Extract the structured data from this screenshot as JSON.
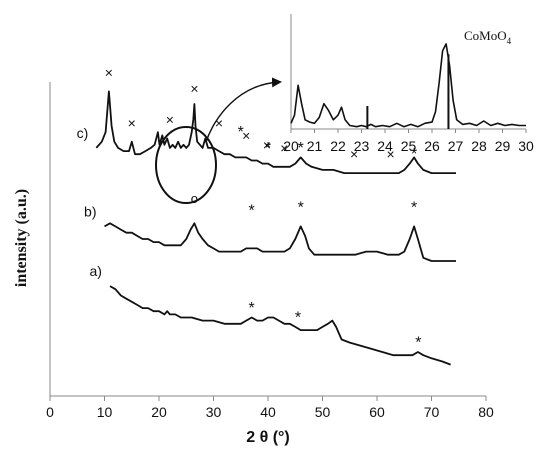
{
  "chart_data": {
    "type": "line",
    "xlabel": "2 θ (°)",
    "ylabel": "intensity (a.u.)",
    "xlim": [
      0,
      80
    ],
    "xticks": [
      "0",
      "10",
      "20",
      "30",
      "40",
      "50",
      "60",
      "70",
      "80"
    ],
    "grid": false,
    "legend": "none",
    "series": [
      {
        "name": "c)",
        "points": [
          [
            8.5,
            0.79
          ],
          [
            9.5,
            0.81
          ],
          [
            10.2,
            0.84
          ],
          [
            10.8,
            0.97
          ],
          [
            11.3,
            0.86
          ],
          [
            11.8,
            0.81
          ],
          [
            12.5,
            0.79
          ],
          [
            13.5,
            0.78
          ],
          [
            14.5,
            0.78
          ],
          [
            15.0,
            0.81
          ],
          [
            15.6,
            0.77
          ],
          [
            16.5,
            0.77
          ],
          [
            17.5,
            0.78
          ],
          [
            18.5,
            0.79
          ],
          [
            19.2,
            0.8
          ],
          [
            19.8,
            0.84
          ],
          [
            20.1,
            0.8
          ],
          [
            20.6,
            0.83
          ],
          [
            21.0,
            0.8
          ],
          [
            21.5,
            0.82
          ],
          [
            22.0,
            0.79
          ],
          [
            22.5,
            0.8
          ],
          [
            23.0,
            0.79
          ],
          [
            23.5,
            0.81
          ],
          [
            24.0,
            0.79
          ],
          [
            24.5,
            0.8
          ],
          [
            25.0,
            0.79
          ],
          [
            25.5,
            0.8
          ],
          [
            26.0,
            0.84
          ],
          [
            26.3,
            0.88
          ],
          [
            26.5,
            0.93
          ],
          [
            26.7,
            0.86
          ],
          [
            27.0,
            0.81
          ],
          [
            27.5,
            0.8
          ],
          [
            28.0,
            0.79
          ],
          [
            28.5,
            0.82
          ],
          [
            29.0,
            0.79
          ],
          [
            30.0,
            0.79
          ],
          [
            31.0,
            0.78
          ],
          [
            32.0,
            0.77
          ],
          [
            33.0,
            0.77
          ],
          [
            34.0,
            0.76
          ],
          [
            35.0,
            0.76
          ],
          [
            36.0,
            0.76
          ],
          [
            37.0,
            0.75
          ],
          [
            38.0,
            0.75
          ],
          [
            39.0,
            0.74
          ],
          [
            40.0,
            0.74
          ],
          [
            41.0,
            0.73
          ],
          [
            42.0,
            0.73
          ],
          [
            43.0,
            0.73
          ],
          [
            44.0,
            0.73
          ],
          [
            45.0,
            0.74
          ],
          [
            46.0,
            0.76
          ],
          [
            47.0,
            0.74
          ],
          [
            48.0,
            0.73
          ],
          [
            50.0,
            0.72
          ],
          [
            52.0,
            0.72
          ],
          [
            54.0,
            0.71
          ],
          [
            56.0,
            0.71
          ],
          [
            58.0,
            0.71
          ],
          [
            60.0,
            0.71
          ],
          [
            62.0,
            0.71
          ],
          [
            64.0,
            0.71
          ],
          [
            65.0,
            0.72
          ],
          [
            66.0,
            0.74
          ],
          [
            66.8,
            0.76
          ],
          [
            67.5,
            0.74
          ],
          [
            68.5,
            0.72
          ],
          [
            70.0,
            0.71
          ],
          [
            72.0,
            0.71
          ],
          [
            74.5,
            0.71
          ]
        ]
      },
      {
        "name": "b)",
        "points": [
          [
            10.0,
            0.54
          ],
          [
            11.0,
            0.55
          ],
          [
            12.0,
            0.54
          ],
          [
            13.0,
            0.53
          ],
          [
            14.0,
            0.52
          ],
          [
            15.0,
            0.52
          ],
          [
            16.0,
            0.51
          ],
          [
            17.0,
            0.5
          ],
          [
            18.0,
            0.5
          ],
          [
            19.0,
            0.49
          ],
          [
            20.0,
            0.49
          ],
          [
            21.0,
            0.48
          ],
          [
            22.0,
            0.48
          ],
          [
            23.0,
            0.48
          ],
          [
            24.0,
            0.48
          ],
          [
            25.0,
            0.5
          ],
          [
            25.8,
            0.53
          ],
          [
            26.5,
            0.55
          ],
          [
            27.2,
            0.52
          ],
          [
            28.0,
            0.5
          ],
          [
            29.0,
            0.48
          ],
          [
            30.0,
            0.47
          ],
          [
            31.0,
            0.46
          ],
          [
            32.0,
            0.46
          ],
          [
            33.0,
            0.46
          ],
          [
            34.0,
            0.46
          ],
          [
            35.0,
            0.46
          ],
          [
            36.0,
            0.47
          ],
          [
            37.0,
            0.47
          ],
          [
            38.0,
            0.47
          ],
          [
            39.0,
            0.46
          ],
          [
            40.0,
            0.46
          ],
          [
            41.0,
            0.46
          ],
          [
            42.0,
            0.46
          ],
          [
            43.0,
            0.46
          ],
          [
            44.0,
            0.47
          ],
          [
            45.0,
            0.5
          ],
          [
            46.0,
            0.54
          ],
          [
            46.8,
            0.51
          ],
          [
            47.5,
            0.47
          ],
          [
            48.5,
            0.45
          ],
          [
            50.0,
            0.45
          ],
          [
            52.0,
            0.45
          ],
          [
            54.0,
            0.45
          ],
          [
            56.0,
            0.45
          ],
          [
            58.0,
            0.46
          ],
          [
            60.0,
            0.46
          ],
          [
            62.0,
            0.45
          ],
          [
            64.0,
            0.45
          ],
          [
            65.0,
            0.46
          ],
          [
            66.0,
            0.5
          ],
          [
            66.8,
            0.54
          ],
          [
            67.5,
            0.5
          ],
          [
            68.5,
            0.44
          ],
          [
            70.0,
            0.43
          ],
          [
            72.0,
            0.43
          ],
          [
            74.5,
            0.43
          ]
        ]
      },
      {
        "name": "a)",
        "points": [
          [
            11.0,
            0.35
          ],
          [
            12.0,
            0.34
          ],
          [
            13.0,
            0.32
          ],
          [
            14.0,
            0.31
          ],
          [
            15.0,
            0.3
          ],
          [
            16.0,
            0.29
          ],
          [
            17.0,
            0.28
          ],
          [
            18.0,
            0.28
          ],
          [
            19.0,
            0.27
          ],
          [
            20.0,
            0.27
          ],
          [
            21.0,
            0.26
          ],
          [
            21.5,
            0.27
          ],
          [
            22.0,
            0.26
          ],
          [
            23.0,
            0.26
          ],
          [
            24.0,
            0.25
          ],
          [
            26.0,
            0.25
          ],
          [
            28.0,
            0.24
          ],
          [
            30.0,
            0.24
          ],
          [
            32.0,
            0.23
          ],
          [
            34.0,
            0.23
          ],
          [
            35.0,
            0.23
          ],
          [
            36.0,
            0.24
          ],
          [
            37.0,
            0.25
          ],
          [
            38.0,
            0.24
          ],
          [
            39.0,
            0.24
          ],
          [
            40.0,
            0.25
          ],
          [
            41.0,
            0.25
          ],
          [
            42.0,
            0.24
          ],
          [
            43.0,
            0.23
          ],
          [
            44.0,
            0.23
          ],
          [
            45.0,
            0.22
          ],
          [
            46.0,
            0.21
          ],
          [
            47.0,
            0.21
          ],
          [
            48.0,
            0.21
          ],
          [
            49.0,
            0.21
          ],
          [
            50.0,
            0.22
          ],
          [
            51.0,
            0.23
          ],
          [
            51.8,
            0.24
          ],
          [
            52.5,
            0.22
          ],
          [
            53.5,
            0.18
          ],
          [
            55.0,
            0.17
          ],
          [
            57.0,
            0.16
          ],
          [
            59.0,
            0.15
          ],
          [
            61.0,
            0.14
          ],
          [
            63.0,
            0.13
          ],
          [
            65.0,
            0.13
          ],
          [
            66.5,
            0.13
          ],
          [
            67.5,
            0.14
          ],
          [
            68.5,
            0.13
          ],
          [
            70.0,
            0.12
          ],
          [
            72.0,
            0.11
          ],
          [
            73.5,
            0.1
          ]
        ]
      }
    ],
    "annotations": {
      "crosses": [
        [
          10.8,
          1.03
        ],
        [
          15.0,
          0.87
        ],
        [
          22.0,
          0.88
        ],
        [
          26.5,
          0.98
        ],
        [
          31.0,
          0.87
        ],
        [
          36.0,
          0.83
        ],
        [
          39.8,
          0.8
        ],
        [
          43.0,
          0.79
        ],
        [
          55.8,
          0.77
        ],
        [
          62.5,
          0.77
        ]
      ],
      "stars": [
        [
          35.0,
          0.85
        ],
        [
          40.0,
          0.8
        ],
        [
          46.0,
          0.8
        ],
        [
          66.8,
          0.78
        ],
        [
          37.0,
          0.6
        ],
        [
          46.0,
          0.61
        ],
        [
          66.8,
          0.61
        ],
        [
          37.0,
          0.29
        ],
        [
          45.5,
          0.26
        ],
        [
          67.6,
          0.18
        ]
      ],
      "circles": [
        [
          26.5,
          0.63
        ]
      ],
      "circle_symbol": "o",
      "cross_symbol": "×",
      "star_symbol": "*"
    },
    "inset": {
      "label_main": "CoMoO",
      "label_sub": "4",
      "xlim": [
        20,
        30
      ],
      "xticks": [
        "20",
        "21",
        "22",
        "23",
        "24",
        "25",
        "26",
        "27",
        "28",
        "29",
        "30"
      ],
      "points": [
        [
          20.0,
          0.05
        ],
        [
          20.15,
          0.12
        ],
        [
          20.3,
          0.38
        ],
        [
          20.45,
          0.22
        ],
        [
          20.6,
          0.08
        ],
        [
          20.8,
          0.06
        ],
        [
          21.0,
          0.05
        ],
        [
          21.2,
          0.1
        ],
        [
          21.4,
          0.22
        ],
        [
          21.6,
          0.16
        ],
        [
          21.8,
          0.08
        ],
        [
          22.0,
          0.12
        ],
        [
          22.15,
          0.19
        ],
        [
          22.3,
          0.08
        ],
        [
          22.5,
          0.03
        ],
        [
          22.8,
          0.02
        ],
        [
          23.0,
          0.03
        ],
        [
          23.2,
          0.02
        ],
        [
          23.4,
          0.04
        ],
        [
          23.6,
          0.02
        ],
        [
          23.9,
          0.03
        ],
        [
          24.2,
          0.02
        ],
        [
          24.5,
          0.05
        ],
        [
          24.8,
          0.02
        ],
        [
          25.1,
          0.04
        ],
        [
          25.4,
          0.02
        ],
        [
          25.7,
          0.05
        ],
        [
          26.0,
          0.06
        ],
        [
          26.15,
          0.15
        ],
        [
          26.3,
          0.4
        ],
        [
          26.45,
          0.68
        ],
        [
          26.6,
          0.74
        ],
        [
          26.75,
          0.55
        ],
        [
          26.9,
          0.25
        ],
        [
          27.05,
          0.08
        ],
        [
          27.3,
          0.04
        ],
        [
          27.6,
          0.05
        ],
        [
          27.9,
          0.03
        ],
        [
          28.2,
          0.07
        ],
        [
          28.5,
          0.03
        ],
        [
          28.8,
          0.05
        ],
        [
          29.1,
          0.03
        ],
        [
          29.4,
          0.04
        ],
        [
          29.7,
          0.03
        ],
        [
          30.0,
          0.03
        ]
      ],
      "sticks": [
        [
          23.25,
          0.2
        ],
        [
          26.7,
          0.65
        ]
      ]
    }
  }
}
